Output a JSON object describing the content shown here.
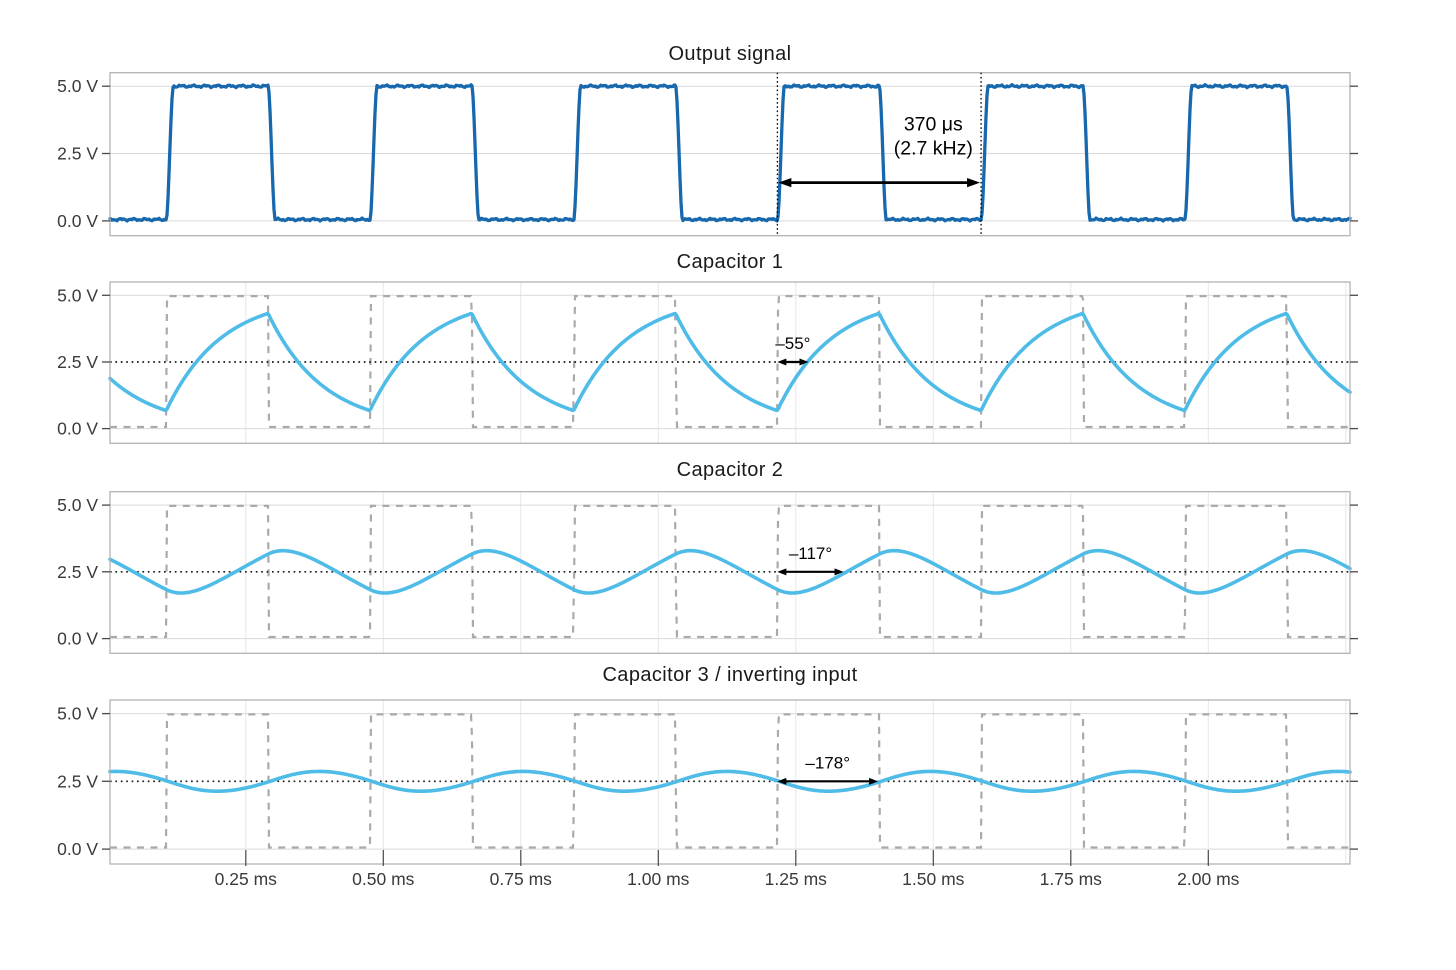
{
  "chart_data": {
    "type": "line",
    "panels": [
      {
        "title": "Output signal",
        "signal": "square",
        "color": "#1768ac",
        "period_annotation": {
          "label_lines": [
            "370 μs",
            "(2.7 kHz)"
          ],
          "from_ms": 1.2164,
          "to_ms": 1.5868,
          "arrow_v": 1.42,
          "text_x_ms": 1.5
        }
      },
      {
        "title": "Capacitor 1",
        "signal": "rc_filtered",
        "rc_stages": 1,
        "color": "#4fbce8",
        "phase_annotation": {
          "label": "–55°",
          "phase_deg": 55
        }
      },
      {
        "title": "Capacitor 2",
        "signal": "rc_filtered",
        "rc_stages": 2,
        "color": "#4fbce8",
        "phase_annotation": {
          "label": "–117°",
          "phase_deg": 117
        }
      },
      {
        "title": "Capacitor 3 / inverting input",
        "signal": "rc_filtered",
        "rc_stages": 3,
        "color": "#4fbce8",
        "phase_annotation": {
          "label": "–178°",
          "phase_deg": 178
        }
      }
    ],
    "square_wave": {
      "period_ms": 0.3704,
      "frequency_khz": 2.7,
      "first_rising_edge_ms": 0.1052,
      "duty_cycle": 0.5,
      "low_v": 0.05,
      "high_v": 5.0
    },
    "rc_stage_time_constants_ms": [
      0.1,
      0.111,
      0.106
    ],
    "phase_reference_edge_ms": 1.2164,
    "midline_v": 2.5,
    "x_ticks": [
      {
        "ms": 0.25,
        "label": "0.25 ms"
      },
      {
        "ms": 0.5,
        "label": "0.50 ms"
      },
      {
        "ms": 0.75,
        "label": "0.75 ms"
      },
      {
        "ms": 1.0,
        "label": "1.00 ms"
      },
      {
        "ms": 1.25,
        "label": "1.25 ms"
      },
      {
        "ms": 1.5,
        "label": "1.50 ms"
      },
      {
        "ms": 1.75,
        "label": "1.75 ms"
      },
      {
        "ms": 2.0,
        "label": "2.00 ms"
      }
    ],
    "y_ticks": [
      {
        "v": 5.0,
        "label": "5.0 V"
      },
      {
        "v": 2.5,
        "label": "2.5 V"
      },
      {
        "v": 0.0,
        "label": "0.0 V"
      }
    ],
    "xlim_ms": [
      0.003,
      2.2576
    ],
    "ylim_v": [
      -0.55,
      5.5
    ],
    "reference_overlay": {
      "show_on_panels": [
        1,
        2,
        3
      ],
      "low_v": 0.06,
      "high_v": 4.97
    }
  },
  "styles": {
    "wave_dark_blue": "#1768ac",
    "wave_light_blue": "#4fbce8",
    "ref_dash_gray": "#aaaaaa",
    "frame_gray": "#b3b3b3",
    "hgrid_gray": "#d9d9d9",
    "vgrid_gray": "#e7e7e7",
    "tick_color": "#4a4a4a",
    "tick_label_color": "#3a3a3a",
    "title_color": "#1a1a1a",
    "annotation_black": "#000000",
    "background": "#ffffff"
  }
}
